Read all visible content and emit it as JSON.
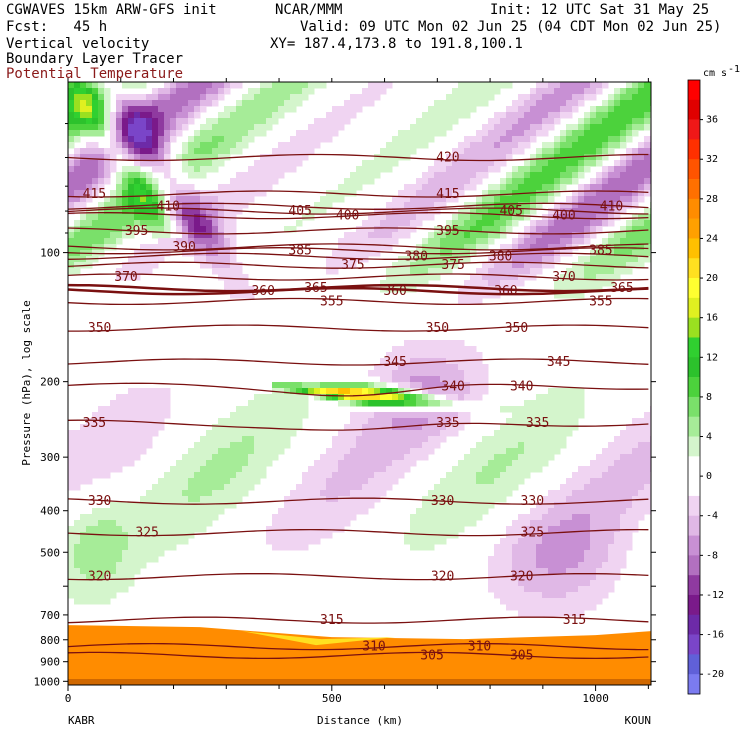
{
  "header": {
    "line1_left": "CGWAVES 15km ARW-GFS init",
    "line1_mid": "NCAR/MMM",
    "line1_right": "Init: 12 UTC Sat 31 May 25",
    "fcst": "Fcst:   45 h",
    "valid": "Valid: 09 UTC Mon 02 Jun 25 (04 CDT Mon 02 Jun 25)",
    "field1": "Vertical velocity",
    "field2": "Boundary Layer Tracer",
    "field3": "Potential Temperature",
    "xy": "XY= 187.4,173.8 to 191.8,100.1"
  },
  "colors": {
    "theta": "#7a1010",
    "field3_text": "#8b1a1a"
  },
  "chart_data": {
    "type": "heatmap",
    "xlabel": "Distance (km)",
    "ylabel": "Pressure (hPa), log scale",
    "x_ticks": [
      0,
      500,
      1000
    ],
    "xlim": [
      0,
      1105
    ],
    "y_ticks": [
      100,
      200,
      300,
      400,
      500,
      600,
      700,
      800,
      900,
      1000
    ],
    "y_ticks_shown": [
      100,
      200,
      300,
      400,
      500,
      700,
      800,
      900,
      1000
    ],
    "ylim": [
      1020,
      40
    ],
    "y_scale": "log",
    "endpoint_left": "KABR",
    "endpoint_right": "KOUN",
    "colorbar": {
      "unit": "cm s",
      "unit_sup": "-1",
      "levels": [
        -22,
        -20,
        -18,
        -16,
        -14,
        -12,
        -10,
        -8,
        -6,
        -4,
        -2,
        0,
        2,
        4,
        6,
        8,
        10,
        12,
        14,
        16,
        18,
        20,
        22,
        24,
        26,
        28,
        30,
        32,
        34,
        36,
        38,
        40
      ],
      "tick_labels": [
        36,
        32,
        28,
        24,
        20,
        16,
        12,
        8,
        4,
        0,
        -4,
        -8,
        -12,
        -16,
        -20
      ],
      "colors": [
        "#7b7bf0",
        "#6060d8",
        "#7a45c8",
        "#6d2aa8",
        "#7a1a8a",
        "#8f3aa0",
        "#b270c0",
        "#c890d4",
        "#e0b8e6",
        "#f0d4f2",
        "#ffffff",
        "#ffffff",
        "#d4f5cc",
        "#a6ec98",
        "#7ae06a",
        "#4cd23c",
        "#2cc22c",
        "#30d030",
        "#9ae020",
        "#e0f020",
        "#ffff30",
        "#ffe020",
        "#ffc000",
        "#ffa000",
        "#ff8c00",
        "#ff7000",
        "#ff5400",
        "#ff3000",
        "#f01818",
        "#e00000",
        "#ff0000"
      ]
    },
    "theta_contours": [
      {
        "label": "420",
        "p": 60,
        "labels_x": [
          720
        ]
      },
      {
        "label": "415",
        "p": 73,
        "labels_x": [
          50,
          720
        ]
      },
      {
        "label": "410",
        "p": 78,
        "labels_x": [
          190,
          1030
        ]
      },
      {
        "label": "405",
        "p": 80,
        "labels_x": [
          440,
          840
        ]
      },
      {
        "label": "400",
        "p": 82,
        "labels_x": [
          530,
          940
        ]
      },
      {
        "label": "395",
        "p": 89,
        "labels_x": [
          130,
          720
        ]
      },
      {
        "label": "390",
        "p": 97,
        "labels_x": [
          220
        ]
      },
      {
        "label": "385",
        "p": 99,
        "labels_x": [
          440,
          1010
        ]
      },
      {
        "label": "380",
        "p": 102,
        "labels_x": [
          660,
          820
        ]
      },
      {
        "label": "375",
        "p": 107,
        "labels_x": [
          540,
          730
        ]
      },
      {
        "label": "370",
        "p": 114,
        "labels_x": [
          110,
          940
        ]
      },
      {
        "label": "365",
        "p": 121,
        "labels_x": [
          470,
          1050
        ]
      },
      {
        "label": "360",
        "p": 123,
        "labels_x": [
          370,
          620,
          830
        ]
      },
      {
        "label": "355",
        "p": 130,
        "labels_x": [
          500,
          1010
        ]
      },
      {
        "label": "350",
        "p": 150,
        "labels_x": [
          60,
          700,
          850
        ]
      },
      {
        "label": "345",
        "p": 180,
        "labels_x": [
          620,
          930
        ]
      },
      {
        "label": "340",
        "p": 205,
        "labels_x": [
          730,
          860
        ]
      },
      {
        "label": "335",
        "p": 250,
        "labels_x": [
          50,
          720,
          890
        ]
      },
      {
        "label": "330",
        "p": 380,
        "labels_x": [
          60,
          710,
          880
        ]
      },
      {
        "label": "325",
        "p": 450,
        "labels_x": [
          150,
          880
        ]
      },
      {
        "label": "320",
        "p": 570,
        "labels_x": [
          60,
          710,
          860
        ]
      },
      {
        "label": "315",
        "p": 720,
        "labels_x": [
          500,
          960
        ]
      },
      {
        "label": "310",
        "p": 830,
        "labels_x": [
          580,
          780
        ]
      },
      {
        "label": "305",
        "p": 870,
        "labels_x": [
          690,
          860
        ]
      }
    ],
    "features": [
      {
        "type": "ascent",
        "name": "upper-level jet ascent",
        "x0": 420,
        "x1": 840,
        "p_center": 220,
        "peak": 26
      },
      {
        "type": "boundary-layer",
        "name": "boundary layer tracer",
        "x0": 0,
        "x1": 1105,
        "p_top": 720,
        "p_bottom": 1000
      }
    ]
  }
}
